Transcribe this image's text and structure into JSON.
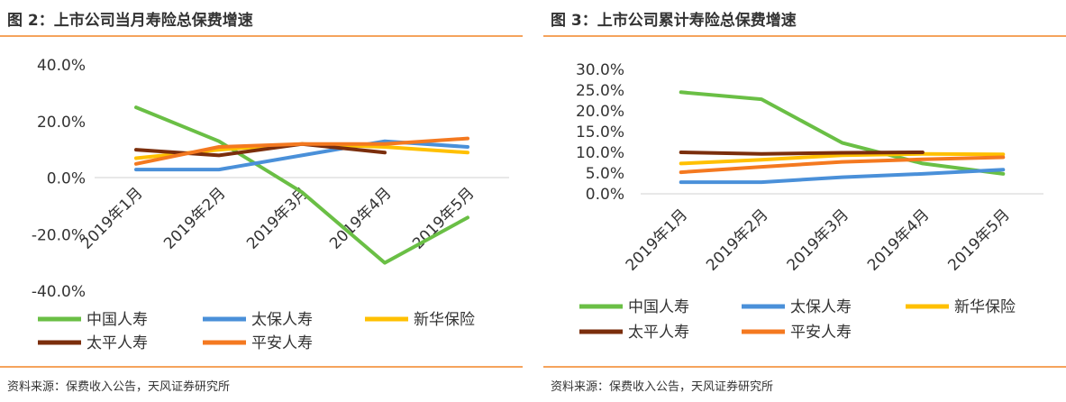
{
  "figures": [
    {
      "title": "图 2：上市公司当月寿险总保费增速",
      "source": "资料来源：保费收入公告，天风证券研究所"
    },
    {
      "title": "图 3：上市公司累计寿险总保费增速",
      "source": "资料来源：保费收入公告，天风证券研究所"
    }
  ],
  "chart_data": [
    {
      "type": "line",
      "title": "图 2：上市公司当月寿险总保费增速",
      "categories": [
        "2019年1月",
        "2019年2月",
        "2019年3月",
        "2019年4月",
        "2019年5月"
      ],
      "y_ticks": [
        "40.0%",
        "20.0%",
        "0.0%",
        "-20.0%",
        "-40.0%"
      ],
      "ylim": [
        -40,
        40
      ],
      "grid": false,
      "legend_position": "bottom",
      "series": [
        {
          "name": "中国人寿",
          "color": "#6abf45",
          "values": [
            25,
            13,
            -5,
            -30,
            -14
          ]
        },
        {
          "name": "太保人寿",
          "color": "#4a90d9",
          "values": [
            3,
            3,
            8,
            13,
            11
          ]
        },
        {
          "name": "新华保险",
          "color": "#ffc000",
          "values": [
            7,
            10,
            12,
            11,
            9
          ]
        },
        {
          "name": "太平人寿",
          "color": "#7b2e0c",
          "values": [
            10,
            8,
            12,
            9,
            null
          ]
        },
        {
          "name": "平安人寿",
          "color": "#f47920",
          "values": [
            5,
            11,
            12,
            12,
            14
          ]
        }
      ]
    },
    {
      "type": "line",
      "title": "图 3：上市公司累计寿险总保费增速",
      "categories": [
        "2019年1月",
        "2019年2月",
        "2019年3月",
        "2019年4月",
        "2019年5月"
      ],
      "y_ticks": [
        "30.0%",
        "25.0%",
        "20.0%",
        "15.0%",
        "10.0%",
        "5.0%",
        "0.0%"
      ],
      "ylim": [
        0,
        30
      ],
      "grid": false,
      "legend_position": "bottom",
      "series": [
        {
          "name": "中国人寿",
          "color": "#6abf45",
          "values": [
            24.5,
            22.8,
            12.3,
            7.3,
            4.8
          ]
        },
        {
          "name": "太保人寿",
          "color": "#4a90d9",
          "values": [
            2.8,
            2.8,
            4.0,
            4.8,
            5.8
          ]
        },
        {
          "name": "新华保险",
          "color": "#ffc000",
          "values": [
            7.3,
            8.2,
            9.3,
            9.6,
            9.5
          ]
        },
        {
          "name": "太平人寿",
          "color": "#7b2e0c",
          "values": [
            10.0,
            9.6,
            9.9,
            10.0,
            null
          ]
        },
        {
          "name": "平安人寿",
          "color": "#f47920",
          "values": [
            5.2,
            6.5,
            7.7,
            8.3,
            8.8
          ]
        }
      ]
    }
  ]
}
